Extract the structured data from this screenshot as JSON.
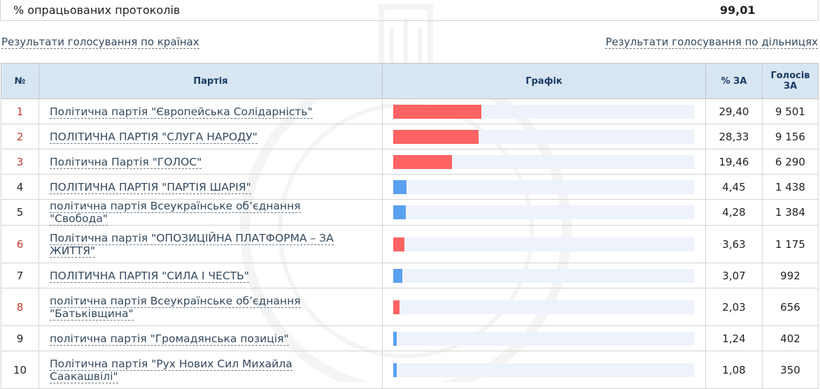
{
  "summary": {
    "label": "% опрацьованих протоколів",
    "value": "99,01"
  },
  "links": {
    "by_countries": "Результати голосування по країнах",
    "by_stations": "Результати голосування по дільницях"
  },
  "table": {
    "headers": {
      "num": "№",
      "party": "Партія",
      "chart": "Графік",
      "pct": "% ЗА",
      "votes_line1": "Голосів",
      "votes_line2": "ЗА"
    },
    "bar_colors": {
      "red": "#ff6363",
      "blue": "#5aa0f0"
    },
    "rows": [
      {
        "num": "1",
        "party": "Політична партія \"Європейська Солідарність\"",
        "pct": "29,40",
        "votes": "9 501",
        "color": "red",
        "value": 29.4
      },
      {
        "num": "2",
        "party": "ПОЛІТИЧНА ПАРТІЯ \"СЛУГА НАРОДУ\"",
        "pct": "28,33",
        "votes": "9 156",
        "color": "red",
        "value": 28.33
      },
      {
        "num": "3",
        "party": "Політична Партія \"ГОЛОС\"",
        "pct": "19,46",
        "votes": "6 290",
        "color": "red",
        "value": 19.46
      },
      {
        "num": "4",
        "party": "ПОЛІТИЧНА ПАРТІЯ \"ПАРТІЯ ШАРІЯ\"",
        "pct": "4,45",
        "votes": "1 438",
        "color": "blue",
        "value": 4.45
      },
      {
        "num": "5",
        "party": "політична партія Всеукраїнське об’єднання \"Свобода\"",
        "pct": "4,28",
        "votes": "1 384",
        "color": "blue",
        "value": 4.28
      },
      {
        "num": "6",
        "party": "Політична партія \"ОПОЗИЦІЙНА ПЛАТФОРМА – ЗА ЖИТТЯ\"",
        "pct": "3,63",
        "votes": "1 175",
        "color": "red",
        "value": 3.63
      },
      {
        "num": "7",
        "party": "ПОЛІТИЧНА ПАРТІЯ \"СИЛА І ЧЕСТЬ\"",
        "pct": "3,07",
        "votes": "992",
        "color": "blue",
        "value": 3.07
      },
      {
        "num": "8",
        "party": "політична партія Всеукраїнське об’єднання \"Батьківщина\"",
        "pct": "2,03",
        "votes": "656",
        "color": "red",
        "value": 2.03
      },
      {
        "num": "9",
        "party": "політична партія \"Громадянська позиція\"",
        "pct": "1,24",
        "votes": "402",
        "color": "blue",
        "value": 1.24
      },
      {
        "num": "10",
        "party": "Політична партія \"Рух Нових Сил Михайла Саакашвілі\"",
        "pct": "1,08",
        "votes": "350",
        "color": "blue",
        "value": 1.08
      }
    ]
  }
}
